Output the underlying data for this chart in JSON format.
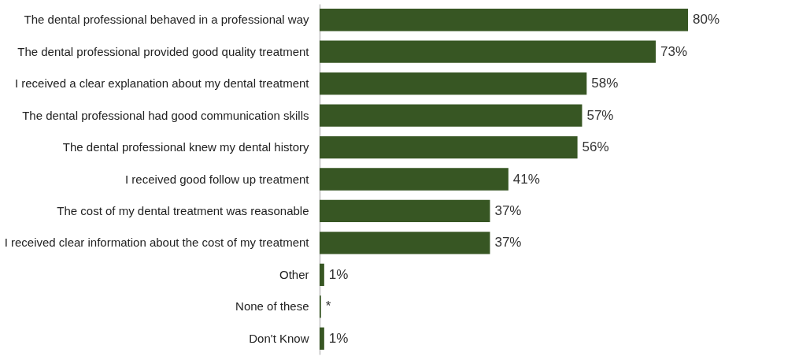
{
  "chart_data": {
    "type": "bar",
    "orientation": "horizontal",
    "categories": [
      "The dental professional behaved in a professional way",
      "The dental professional provided good quality treatment",
      "I received a clear explanation about my dental treatment",
      "The dental professional had good communication skills",
      "The dental professional knew my dental history",
      "I received good follow up treatment",
      "The cost of my dental treatment was reasonable",
      "I received clear information about the cost of my treatment",
      "Other",
      "None of these",
      "Don't Know"
    ],
    "values": [
      80,
      73,
      58,
      57,
      56,
      41,
      37,
      37,
      1,
      0.3,
      1
    ],
    "value_labels": [
      "80%",
      "73%",
      "58%",
      "57%",
      "56%",
      "41%",
      "37%",
      "37%",
      "1%",
      "*",
      "1%"
    ],
    "color": "#375623"
  }
}
